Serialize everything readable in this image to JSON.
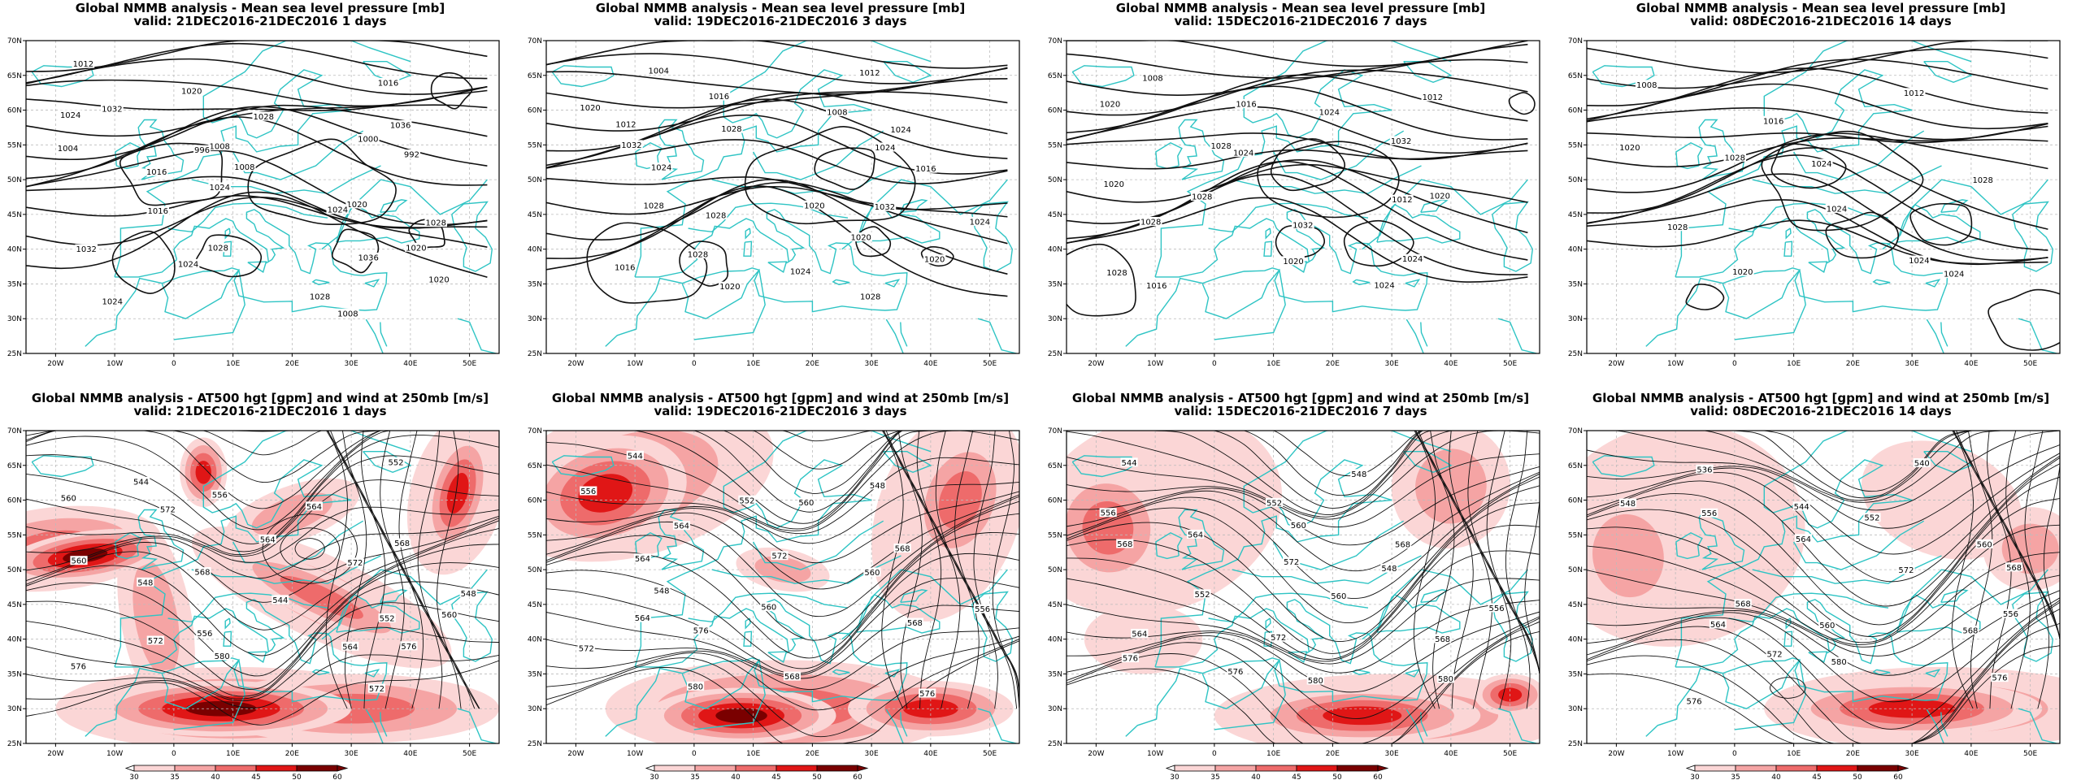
{
  "colors": {
    "coast": "#2ec4c4",
    "contour": "#111111",
    "wind_scale": [
      "#ffffff",
      "#fbd6d6",
      "#f5a4a4",
      "#ee6b6b",
      "#e01616",
      "#7a0000"
    ]
  },
  "panels": [
    {
      "id": "mslp-1",
      "kind": "mslp",
      "title": "Global NMMB analysis - Mean sea level pressure [mb]",
      "valid": "valid: 21DEC2016-21DEC2016   1 days",
      "contour_labels": [
        "1012",
        "1016",
        "1020",
        "1024",
        "1028",
        "1032",
        "1036",
        "1008",
        "1004",
        "1000",
        "996",
        "992",
        "1008",
        "1016",
        "1020",
        "1024",
        "1028",
        "1024",
        "1016",
        "1020",
        "1028",
        "1032",
        "1036",
        "1024",
        "1020",
        "1028",
        "1024",
        "1008"
      ]
    },
    {
      "id": "mslp-3",
      "kind": "mslp",
      "title": "Global NMMB analysis - Mean sea level pressure [mb]",
      "valid": "valid: 19DEC2016-21DEC2016   3 days",
      "contour_labels": [
        "1004",
        "1012",
        "1016",
        "1020",
        "1008",
        "1012",
        "1024",
        "1028",
        "1032",
        "1024",
        "1024",
        "1016",
        "1020",
        "1028",
        "1032",
        "1028",
        "1024",
        "1020",
        "1028",
        "1020",
        "1024",
        "1016",
        "1028",
        "1020"
      ]
    },
    {
      "id": "mslp-7",
      "kind": "mslp",
      "title": "Global NMMB analysis - Mean sea level pressure [mb]",
      "valid": "valid: 15DEC2016-21DEC2016   7 days",
      "contour_labels": [
        "1008",
        "1012",
        "1016",
        "1020",
        "1024",
        "1028",
        "1032",
        "1024",
        "1020",
        "1012",
        "1028",
        "1020",
        "1032",
        "1028",
        "1024",
        "1020",
        "1028",
        "1024",
        "1016"
      ]
    },
    {
      "id": "mslp-14",
      "kind": "mslp",
      "title": "Global NMMB analysis - Mean sea level pressure [mb]",
      "valid": "valid: 08DEC2016-21DEC2016   14 days",
      "contour_labels": [
        "1008",
        "1012",
        "1016",
        "1020",
        "1024",
        "1028",
        "1028",
        "1024",
        "1028",
        "1024",
        "1020",
        "1024"
      ]
    },
    {
      "id": "z500-1",
      "kind": "z500",
      "title": "Global NMMB analysis - AT500 hgt [gpm] and wind at 250mb [m/s]",
      "valid": "valid: 21DEC2016-21DEC2016   1 days",
      "contour_labels": [
        "544",
        "552",
        "556",
        "560",
        "564",
        "572",
        "568",
        "564",
        "560",
        "572",
        "568",
        "548",
        "544",
        "548",
        "552",
        "556",
        "560",
        "564",
        "572",
        "576",
        "580",
        "576",
        "572"
      ]
    },
    {
      "id": "z500-3",
      "kind": "z500",
      "title": "Global NMMB analysis - AT500 hgt [gpm] and wind at 250mb [m/s]",
      "valid": "valid: 19DEC2016-21DEC2016   3 days",
      "contour_labels": [
        "544",
        "548",
        "552",
        "556",
        "560",
        "564",
        "568",
        "572",
        "564",
        "560",
        "548",
        "556",
        "560",
        "564",
        "568",
        "576",
        "572",
        "568",
        "580",
        "576"
      ]
    },
    {
      "id": "z500-7",
      "kind": "z500",
      "title": "Global NMMB analysis - AT500 hgt [gpm] and wind at 250mb [m/s]",
      "valid": "valid: 15DEC2016-21DEC2016   7 days",
      "contour_labels": [
        "544",
        "548",
        "552",
        "556",
        "560",
        "564",
        "568",
        "572",
        "568",
        "548",
        "552",
        "556",
        "560",
        "564",
        "568",
        "572",
        "576",
        "580",
        "576",
        "580"
      ]
    },
    {
      "id": "z500-14",
      "kind": "z500",
      "title": "Global NMMB analysis - AT500 hgt [gpm] and wind at 250mb [m/s]",
      "valid": "valid: 08DEC2016-21DEC2016   14 days",
      "contour_labels": [
        "536",
        "540",
        "544",
        "548",
        "552",
        "556",
        "560",
        "564",
        "568",
        "572",
        "568",
        "556",
        "560",
        "564",
        "568",
        "572",
        "576",
        "580",
        "576"
      ]
    }
  ],
  "lat_labels": [
    "70N",
    "65N",
    "60N",
    "55N",
    "50N",
    "45N",
    "40N",
    "35N",
    "30N",
    "25N"
  ],
  "lon_labels": [
    "20W",
    "10W",
    "0",
    "10E",
    "20E",
    "30E",
    "40E",
    "50E"
  ],
  "colorbar_labels": [
    "30",
    "35",
    "40",
    "45",
    "50",
    "60"
  ]
}
